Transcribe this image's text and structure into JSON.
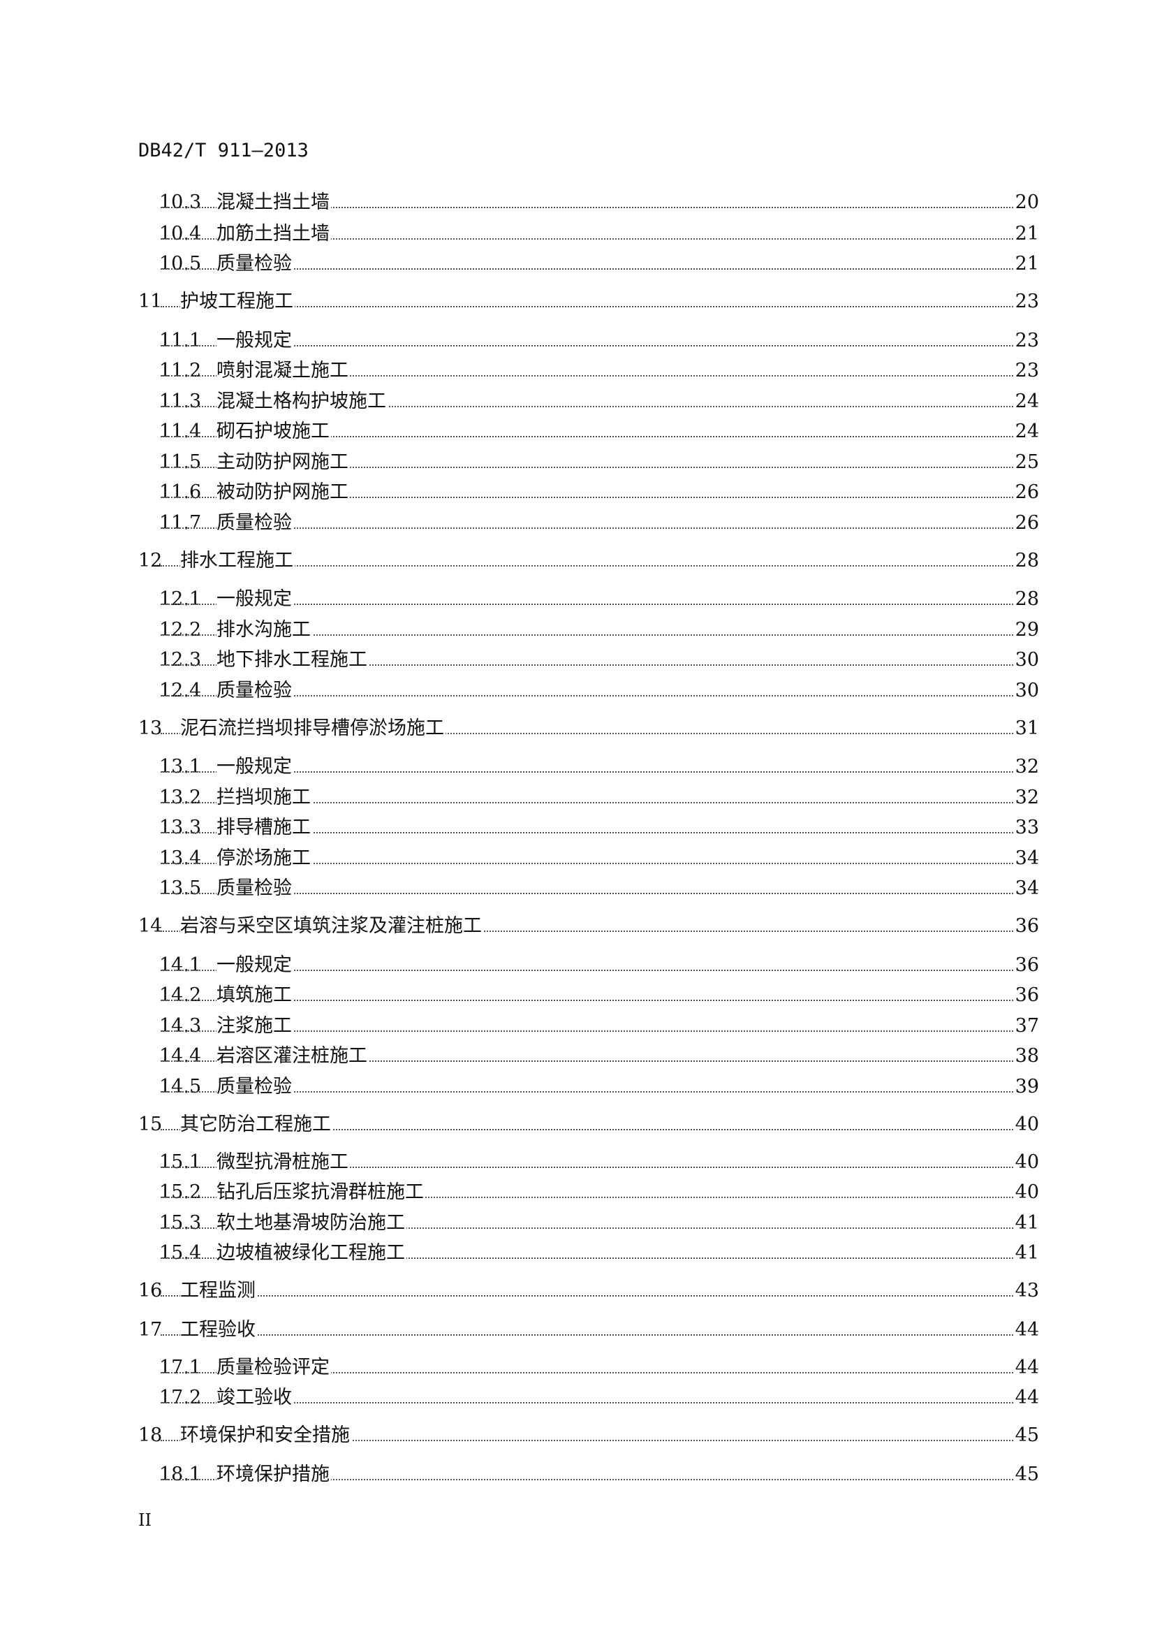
{
  "header": {
    "doc_code": "DB42/T 911—2013"
  },
  "toc": [
    {
      "level": 2,
      "num": "10.3",
      "title": "混凝土挡土墙",
      "page": "20"
    },
    {
      "level": 2,
      "num": "10.4",
      "title": "加筋土挡土墙",
      "page": "21"
    },
    {
      "level": 2,
      "num": "10.5",
      "title": "质量检验",
      "page": "21"
    },
    {
      "level": 1,
      "num": "11",
      "title": "护坡工程施工",
      "page": "23"
    },
    {
      "level": 2,
      "num": "11.1",
      "title": "一般规定",
      "page": "23"
    },
    {
      "level": 2,
      "num": "11.2",
      "title": "喷射混凝土施工",
      "page": "23"
    },
    {
      "level": 2,
      "num": "11.3",
      "title": "混凝土格构护坡施工",
      "page": "24"
    },
    {
      "level": 2,
      "num": "11.4",
      "title": "砌石护坡施工",
      "page": "24"
    },
    {
      "level": 2,
      "num": "11.5",
      "title": "主动防护网施工",
      "page": "25"
    },
    {
      "level": 2,
      "num": "11.6",
      "title": "被动防护网施工",
      "page": "26"
    },
    {
      "level": 2,
      "num": "11.7",
      "title": "质量检验",
      "page": "26"
    },
    {
      "level": 1,
      "num": "12",
      "title": "排水工程施工",
      "page": "28"
    },
    {
      "level": 2,
      "num": "12.1",
      "title": "一般规定",
      "page": "28"
    },
    {
      "level": 2,
      "num": "12.2",
      "title": "排水沟施工",
      "page": "29"
    },
    {
      "level": 2,
      "num": "12.3",
      "title": "地下排水工程施工",
      "page": "30"
    },
    {
      "level": 2,
      "num": "12.4",
      "title": "质量检验",
      "page": "30"
    },
    {
      "level": 1,
      "num": "13",
      "title": "泥石流拦挡坝排导槽停淤场施工",
      "page": "31"
    },
    {
      "level": 2,
      "num": "13.1",
      "title": "一般规定",
      "page": "32"
    },
    {
      "level": 2,
      "num": "13.2",
      "title": "拦挡坝施工",
      "page": "32"
    },
    {
      "level": 2,
      "num": "13.3",
      "title": "排导槽施工",
      "page": "33"
    },
    {
      "level": 2,
      "num": "13.4",
      "title": "停淤场施工",
      "page": "34"
    },
    {
      "level": 2,
      "num": "13.5",
      "title": "质量检验",
      "page": "34"
    },
    {
      "level": 1,
      "num": "14",
      "title": "岩溶与采空区填筑注浆及灌注桩施工",
      "page": "36"
    },
    {
      "level": 2,
      "num": "14.1",
      "title": "一般规定",
      "page": "36"
    },
    {
      "level": 2,
      "num": "14.2",
      "title": "填筑施工",
      "page": "36"
    },
    {
      "level": 2,
      "num": "14.3",
      "title": "注浆施工",
      "page": "37"
    },
    {
      "level": 2,
      "num": "14.4",
      "title": "岩溶区灌注桩施工",
      "page": "38"
    },
    {
      "level": 2,
      "num": "14.5",
      "title": "质量检验",
      "page": "39"
    },
    {
      "level": 1,
      "num": "15",
      "title": "其它防治工程施工",
      "page": "40"
    },
    {
      "level": 2,
      "num": "15.1",
      "title": "微型抗滑桩施工",
      "page": "40"
    },
    {
      "level": 2,
      "num": "15.2",
      "title": "钻孔后压浆抗滑群桩施工",
      "page": "40"
    },
    {
      "level": 2,
      "num": "15.3",
      "title": "软土地基滑坡防治施工",
      "page": "41"
    },
    {
      "level": 2,
      "num": "15.4",
      "title": "边坡植被绿化工程施工",
      "page": "41"
    },
    {
      "level": 1,
      "num": "16",
      "title": "工程监测",
      "page": "43"
    },
    {
      "level": 1,
      "num": "17",
      "title": "工程验收",
      "page": "44"
    },
    {
      "level": 2,
      "num": "17.1",
      "title": "质量检验评定",
      "page": "44"
    },
    {
      "level": 2,
      "num": "17.2",
      "title": "竣工验收",
      "page": "44"
    },
    {
      "level": 1,
      "num": "18",
      "title": "环境保护和安全措施",
      "page": "45"
    },
    {
      "level": 2,
      "num": "18.1",
      "title": "环境保护措施",
      "page": "45"
    }
  ],
  "footer": {
    "page_number": "II"
  }
}
